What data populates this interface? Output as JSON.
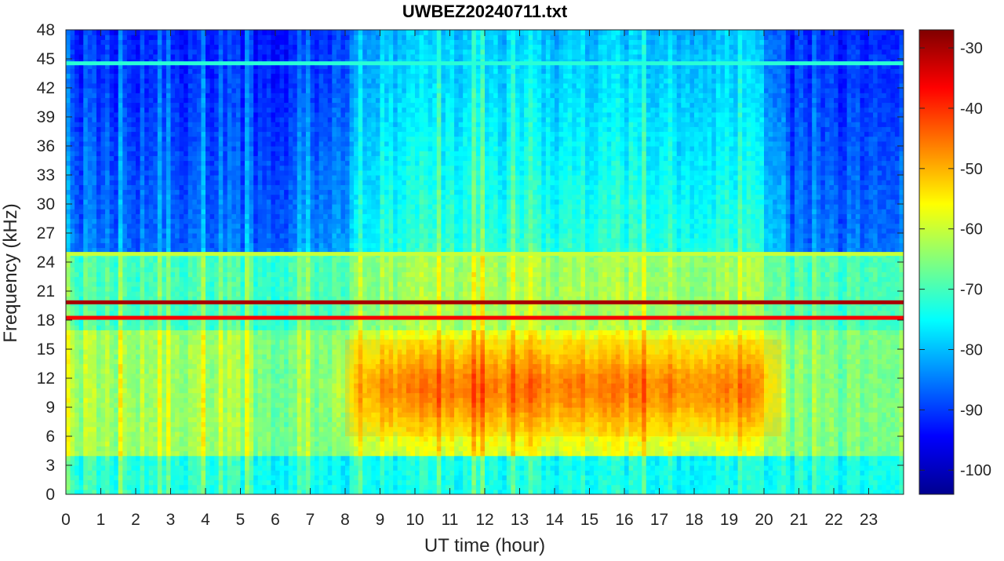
{
  "chart_data": {
    "type": "heatmap",
    "title": "UWBEZ20240711.txt",
    "xlabel": "UT time (hour)",
    "ylabel": "Frequency (kHz)",
    "xlim": [
      0,
      24
    ],
    "ylim": [
      0,
      48
    ],
    "x_ticks": [
      "0",
      "1",
      "2",
      "3",
      "4",
      "5",
      "6",
      "7",
      "8",
      "9",
      "10",
      "11",
      "12",
      "13",
      "14",
      "15",
      "16",
      "17",
      "18",
      "19",
      "20",
      "21",
      "22",
      "23"
    ],
    "y_ticks": [
      "0",
      "3",
      "6",
      "9",
      "12",
      "15",
      "18",
      "21",
      "24",
      "27",
      "30",
      "33",
      "36",
      "39",
      "42",
      "45",
      "48"
    ],
    "colorbar": {
      "colormap": "jet",
      "range": [
        -104,
        -27
      ],
      "ticks": [
        "-30",
        "-40",
        "-50",
        "-60",
        "-70",
        "-80",
        "-90",
        "-100"
      ]
    },
    "features": [
      {
        "description": "strong narrowband transmitter",
        "freq_khz": 19.8,
        "level_db": -30
      },
      {
        "description": "strong narrowband transmitter",
        "freq_khz": 18.2,
        "level_db": -36
      },
      {
        "description": "narrowband line",
        "freq_khz": 24.8,
        "level_db": -60
      },
      {
        "description": "narrowband line",
        "freq_khz": 44.5,
        "level_db": -72
      },
      {
        "description": "broadband daytime sferic noise",
        "freq_range_khz": [
          6,
          16
        ],
        "hour_range": [
          8,
          20.5
        ],
        "level_db": -48
      }
    ]
  }
}
